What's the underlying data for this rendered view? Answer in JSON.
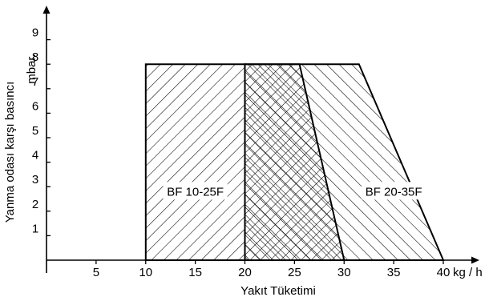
{
  "chart_data": {
    "type": "area",
    "xlabel": "Yakıt Tüketimi",
    "ylabel": "Yanma odası karşı basıncı",
    "y_unit": "mbar.",
    "x_unit": "kg / h",
    "x_ticks": [
      5,
      10,
      15,
      20,
      25,
      30,
      35,
      40
    ],
    "y_ticks": [
      1,
      2,
      3,
      4,
      5,
      6,
      7,
      8,
      9
    ],
    "xlim": [
      0,
      42
    ],
    "ylim": [
      0,
      10
    ],
    "grid": false,
    "series": [
      {
        "name": "BF 10-25F",
        "hatch": "forward-diagonal",
        "x": [
          10,
          10,
          20,
          20
        ],
        "y": [
          0,
          8,
          8,
          0
        ]
      },
      {
        "name": "BF 20-35F",
        "hatch": "backward-diagonal",
        "x": [
          20,
          20,
          31.5,
          40
        ],
        "y": [
          0,
          8,
          8,
          0
        ]
      },
      {
        "name": "",
        "hatch": "cross",
        "x": [
          20,
          20,
          25.5,
          30
        ],
        "y": [
          0,
          8,
          8,
          0
        ]
      }
    ],
    "annotations": [
      {
        "text": "BF 10-25F",
        "x": 15,
        "y": 2.8
      },
      {
        "text": "BF 20-35F",
        "x": 35,
        "y": 2.8
      }
    ]
  }
}
